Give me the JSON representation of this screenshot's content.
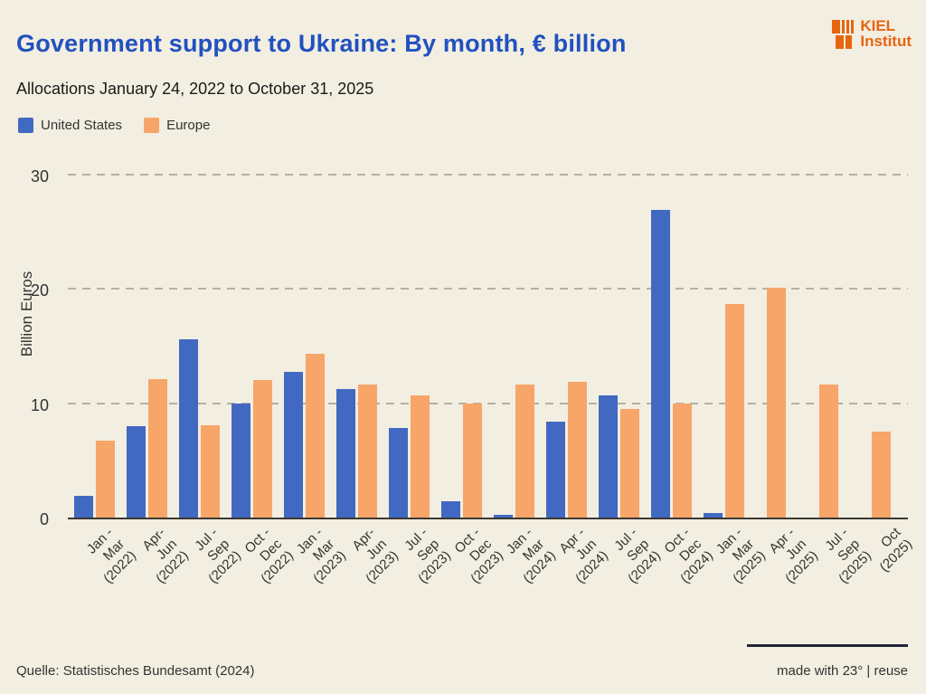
{
  "header": {
    "logo": {
      "line1": "KIEL",
      "line2": "Institut"
    }
  },
  "legend": {
    "items": [
      {
        "label": "United States"
      },
      {
        "label": "Europe"
      }
    ]
  },
  "footer": {
    "source": "Quelle: Statistisches Bundesamt (2024)",
    "credit": "made with 23° | reuse"
  },
  "colors": {
    "background": "#f2eee1",
    "title": "#2151c0",
    "grid": "#b5b0a4",
    "axis": "#3c3832",
    "logo_orange": "#e8650f",
    "united_states_blue": "#4269c2",
    "europe_orange": "#f7a569"
  },
  "chart_data": {
    "type": "bar",
    "title": "Government support to Ukraine: By month, € billion",
    "subtitle": "Allocations January 24, 2022 to October 31, 2025",
    "categories": [
      "Jan - Mar\n(2022)",
      "Apr-Jun\n(2022)",
      "Jul - Sep\n(2022)",
      "Oct - Dec\n(2022)",
      "Jan - Mar\n(2023)",
      "Apr-Jun\n(2023)",
      "Jul - Sep\n(2023)",
      "Oct - Dec\n(2023)",
      "Jan - Mar\n(2024)",
      "Apr - Jun\n(2024)",
      "Jul - Sep\n(2024)",
      "Oct - Dec\n(2024)",
      "Jan - Mar\n(2025)",
      "Apr - Jun\n(2025)",
      "Jul - Sep\n(2025)",
      "Oct (2025)"
    ],
    "series": [
      {
        "name": "United States",
        "color": "#4269c2",
        "values": [
          1.9,
          8.0,
          15.6,
          10.0,
          12.7,
          11.2,
          7.8,
          1.4,
          0.2,
          8.4,
          10.7,
          26.9,
          0.4,
          0,
          0,
          0
        ]
      },
      {
        "name": "Europe",
        "color": "#f7a569",
        "values": [
          6.7,
          12.1,
          8.1,
          12.0,
          14.3,
          11.6,
          10.7,
          10.0,
          11.6,
          11.9,
          9.5,
          10.0,
          18.7,
          20.1,
          11.6,
          7.5
        ]
      }
    ],
    "xlabel": "",
    "ylabel": "Billion Euros",
    "yticks": [
      0,
      10,
      20,
      30
    ],
    "ylim": [
      0,
      31
    ],
    "grid": "horizontal-dashed",
    "legend_position": "top-left"
  }
}
